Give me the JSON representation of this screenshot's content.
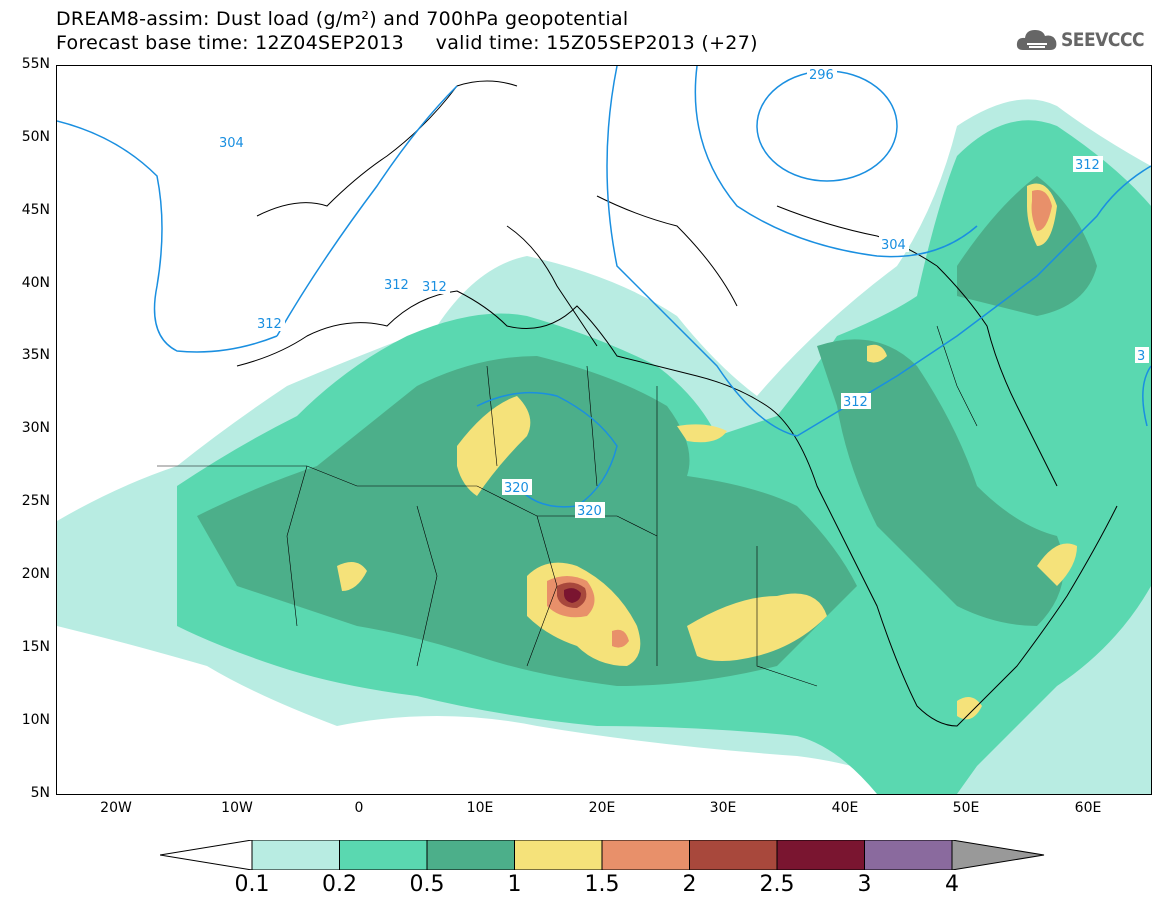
{
  "title": {
    "line1": "DREAM8-assim: Dust load (g/m²) and 700hPa geopotential",
    "line2": "Forecast base time: 12Z04SEP2013     valid time: 15Z05SEP2013 (+27)"
  },
  "logo": {
    "text": "SEEVCCC",
    "icon": "cloud-icon"
  },
  "axes": {
    "lat_labels": [
      "55N",
      "50N",
      "45N",
      "40N",
      "35N",
      "30N",
      "25N",
      "20N",
      "15N",
      "10N",
      "5N"
    ],
    "lon_labels": [
      "20W",
      "10W",
      "0",
      "10E",
      "20E",
      "30E",
      "40E",
      "50E",
      "60E"
    ]
  },
  "contour_labels": [
    "304",
    "296",
    "312",
    "304",
    "312",
    "312",
    "312",
    "312",
    "320",
    "320",
    "3"
  ],
  "colorbar": {
    "labels": [
      "0.1",
      "0.2",
      "0.5",
      "1",
      "1.5",
      "2",
      "2.5",
      "3",
      "4"
    ],
    "colors": [
      "#b8ece2",
      "#5ad8b0",
      "#4caf8a",
      "#f5e27a",
      "#e8906a",
      "#a8483c",
      "#7a1530",
      "#8a6a9e"
    ],
    "colors_meaning": "dust load bins",
    "over_color": "#999999",
    "under_color": "#ffffff"
  },
  "colors": {
    "contour": "#1a8fe0",
    "coast": "#000000"
  }
}
